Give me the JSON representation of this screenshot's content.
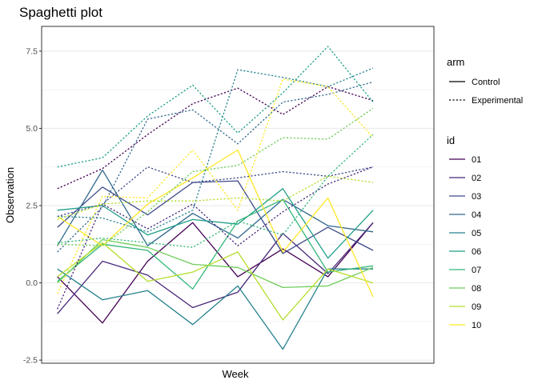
{
  "chart_data": {
    "type": "line",
    "title": "Spaghetti plot",
    "xlabel": "Week",
    "ylabel": "Observation",
    "ylim": [
      -2.6,
      8.3
    ],
    "x": [
      0,
      1,
      2,
      3,
      4,
      5,
      6,
      7,
      8
    ],
    "y_ticks": [
      {
        "value": -2.5,
        "label": "-2.5"
      },
      {
        "value": 0,
        "label": "0.0"
      },
      {
        "value": 2.5,
        "label": "2.5"
      },
      {
        "value": 5,
        "label": "5.0"
      },
      {
        "value": 7.5,
        "label": "7.5"
      }
    ],
    "grid": true,
    "legend_arm": {
      "title": "arm",
      "items": [
        {
          "label": "Control",
          "style": "solid"
        },
        {
          "label": "Experimental",
          "style": "dashed"
        }
      ]
    },
    "legend_id": {
      "title": "id",
      "items": [
        {
          "label": "01",
          "color": "#440154"
        },
        {
          "label": "02",
          "color": "#482878"
        },
        {
          "label": "03",
          "color": "#3E4A89"
        },
        {
          "label": "04",
          "color": "#31688E"
        },
        {
          "label": "05",
          "color": "#26828E"
        },
        {
          "label": "06",
          "color": "#1F9E89"
        },
        {
          "label": "07",
          "color": "#35B779"
        },
        {
          "label": "08",
          "color": "#6DCD59"
        },
        {
          "label": "09",
          "color": "#B4DE2C"
        },
        {
          "label": "10",
          "color": "#FDE725"
        }
      ]
    },
    "series": [
      {
        "arm": "Control",
        "id": "01",
        "color": "#440154",
        "values": [
          0.2,
          -1.3,
          0.7,
          1.95,
          0.2,
          1.1,
          0.2,
          1.95,
          null
        ]
      },
      {
        "arm": "Control",
        "id": "02",
        "color": "#482878",
        "values": [
          -1.0,
          0.7,
          0.25,
          -0.8,
          -0.3,
          1.6,
          0.3,
          1.95,
          null
        ]
      },
      {
        "arm": "Control",
        "id": "03",
        "color": "#3E4A89",
        "values": [
          1.8,
          3.1,
          2.2,
          3.25,
          3.3,
          0.95,
          1.8,
          1.05,
          null
        ]
      },
      {
        "arm": "Control",
        "id": "04",
        "color": "#31688E",
        "values": [
          1.2,
          3.65,
          1.2,
          2.25,
          1.45,
          2.7,
          1.85,
          1.65,
          null
        ]
      },
      {
        "arm": "Control",
        "id": "05",
        "color": "#26828E",
        "values": [
          0.45,
          -0.55,
          -0.25,
          -1.35,
          -0.1,
          -2.15,
          0.45,
          0.45,
          null
        ]
      },
      {
        "arm": "Control",
        "id": "06",
        "color": "#1F9E89",
        "values": [
          2.35,
          2.5,
          1.55,
          2.05,
          1.9,
          3.05,
          0.8,
          2.35,
          null
        ]
      },
      {
        "arm": "Control",
        "id": "07",
        "color": "#35B779",
        "values": [
          0.05,
          1.25,
          1.05,
          -0.2,
          2.0,
          2.7,
          0.35,
          0.55,
          null
        ]
      },
      {
        "arm": "Control",
        "id": "08",
        "color": "#6DCD59",
        "values": [
          0.0,
          1.4,
          1.15,
          0.6,
          0.5,
          -0.15,
          -0.1,
          0.5,
          null
        ]
      },
      {
        "arm": "Control",
        "id": "09",
        "color": "#B4DE2C",
        "values": [
          0.2,
          1.3,
          0.05,
          0.35,
          1.0,
          -1.2,
          0.45,
          0.0,
          null
        ]
      },
      {
        "arm": "Control",
        "id": "10",
        "color": "#FDE725",
        "values": [
          2.15,
          1.2,
          2.55,
          3.4,
          4.3,
          1.0,
          2.75,
          -0.45,
          null
        ]
      },
      {
        "arm": "Experimental",
        "id": "01",
        "color": "#440154",
        "values": [
          3.05,
          3.7,
          4.8,
          5.8,
          6.3,
          5.45,
          6.35,
          5.9,
          null
        ]
      },
      {
        "arm": "Experimental",
        "id": "02",
        "color": "#482878",
        "values": [
          -0.85,
          2.55,
          1.75,
          2.55,
          1.2,
          2.3,
          3.2,
          3.75,
          null
        ]
      },
      {
        "arm": "Experimental",
        "id": "03",
        "color": "#3E4A89",
        "values": [
          2.15,
          2.55,
          3.75,
          3.25,
          3.4,
          3.6,
          3.45,
          3.75,
          null
        ]
      },
      {
        "arm": "Experimental",
        "id": "04",
        "color": "#31688E",
        "values": [
          1.0,
          2.45,
          5.3,
          5.6,
          4.5,
          5.85,
          6.1,
          6.5,
          null
        ]
      },
      {
        "arm": "Experimental",
        "id": "05",
        "color": "#26828E",
        "values": [
          2.15,
          2.1,
          1.65,
          2.35,
          6.9,
          6.65,
          6.35,
          6.95,
          null
        ]
      },
      {
        "arm": "Experimental",
        "id": "06",
        "color": "#1F9E89",
        "values": [
          3.75,
          4.05,
          5.4,
          6.4,
          4.85,
          6.15,
          7.65,
          5.85,
          null
        ]
      },
      {
        "arm": "Experimental",
        "id": "07",
        "color": "#35B779",
        "values": [
          1.3,
          1.45,
          1.3,
          1.15,
          2.0,
          1.55,
          3.45,
          4.8,
          null
        ]
      },
      {
        "arm": "Experimental",
        "id": "08",
        "color": "#6DCD59",
        "values": [
          1.25,
          1.2,
          2.3,
          3.6,
          3.8,
          4.7,
          4.65,
          5.65,
          null
        ]
      },
      {
        "arm": "Experimental",
        "id": "09",
        "color": "#B4DE2C",
        "values": [
          2.05,
          2.55,
          2.65,
          2.65,
          2.75,
          2.65,
          3.45,
          3.25,
          null
        ]
      },
      {
        "arm": "Experimental",
        "id": "10",
        "color": "#FDE725",
        "values": [
          -0.35,
          2.8,
          2.75,
          4.3,
          2.35,
          6.6,
          6.35,
          4.7,
          null
        ]
      }
    ]
  }
}
